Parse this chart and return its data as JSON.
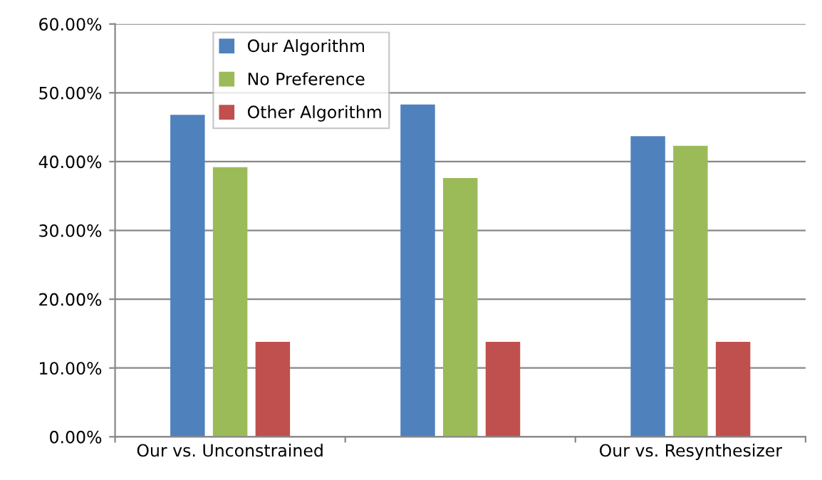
{
  "chart_data": {
    "type": "bar",
    "categories": [
      "Our vs. Unconstrained",
      null,
      "Our vs. Resynthesizer"
    ],
    "series": [
      {
        "name": "Our Algorithm",
        "color": "#4f81bd",
        "values": [
          46.8,
          48.3,
          43.7
        ]
      },
      {
        "name": "No Preference",
        "color": "#9bbb59",
        "values": [
          39.2,
          37.6,
          42.3
        ]
      },
      {
        "name": "Other Algorithm",
        "color": "#c0504d",
        "values": [
          13.8,
          13.8,
          13.8
        ]
      }
    ],
    "ylim": [
      0,
      60
    ],
    "yticks": [
      {
        "value": 0,
        "label": "0.00%"
      },
      {
        "value": 10,
        "label": "10.00%"
      },
      {
        "value": 20,
        "label": "20.00%"
      },
      {
        "value": 30,
        "label": "30.00%"
      },
      {
        "value": 40,
        "label": "40.00%"
      },
      {
        "value": 50,
        "label": "50.00%"
      },
      {
        "value": 60,
        "label": "60.00%"
      }
    ],
    "grid": "y",
    "legend": "top left"
  }
}
